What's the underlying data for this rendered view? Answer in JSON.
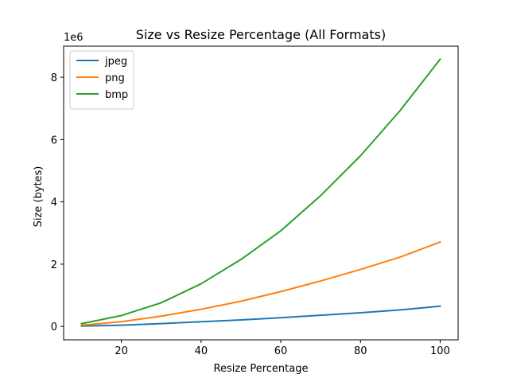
{
  "chart_data": {
    "type": "line",
    "title": "Size vs Resize Percentage (All Formats)",
    "xlabel": "Resize Percentage",
    "ylabel": "Size (bytes)",
    "y_offset_label": "1e6",
    "xlim": [
      5.5,
      104.5
    ],
    "ylim": [
      -0.43,
      9.0
    ],
    "x_ticks": [
      20,
      40,
      60,
      80,
      100
    ],
    "y_ticks": [
      0,
      2,
      4,
      6,
      8
    ],
    "y_tick_labels": [
      "0",
      "2",
      "4",
      "6",
      "8"
    ],
    "x_tick_labels": [
      "20",
      "40",
      "60",
      "80",
      "100"
    ],
    "x": [
      10,
      20,
      30,
      40,
      50,
      60,
      70,
      80,
      90,
      100
    ],
    "series": [
      {
        "name": "jpeg",
        "color": "#1f77b4",
        "values": [
          0.01,
          0.04,
          0.09,
          0.15,
          0.21,
          0.28,
          0.36,
          0.44,
          0.53,
          0.65
        ]
      },
      {
        "name": "png",
        "color": "#ff7f0e",
        "values": [
          0.04,
          0.15,
          0.33,
          0.55,
          0.81,
          1.12,
          1.46,
          1.83,
          2.23,
          2.71
        ]
      },
      {
        "name": "bmp",
        "color": "#2ca02c",
        "values": [
          0.09,
          0.35,
          0.76,
          1.37,
          2.15,
          3.07,
          4.2,
          5.48,
          6.94,
          8.58
        ]
      }
    ],
    "grid": false,
    "legend_position": "top-left"
  }
}
